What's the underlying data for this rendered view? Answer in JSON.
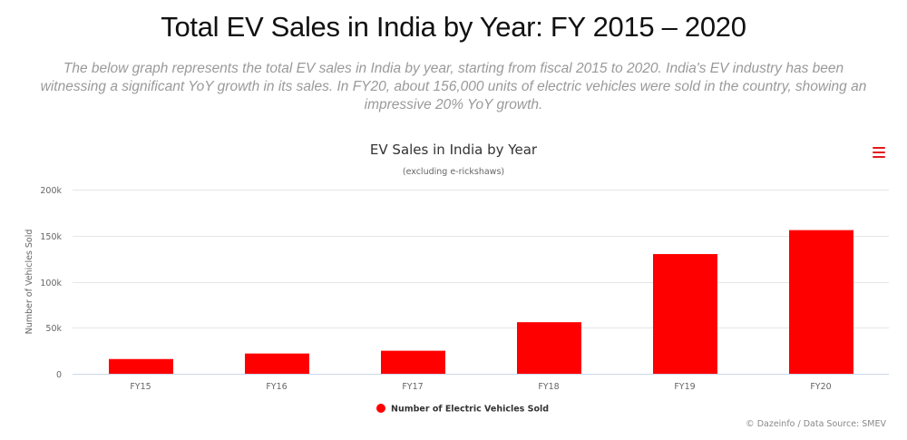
{
  "header": {
    "title": "Total EV Sales in India by Year: FY 2015 – 2020",
    "subtitle": "The below graph represents the total EV sales in India by year, starting from fiscal 2015 to 2020. India's EV industry has been witnessing a significant YoY growth in its sales. In FY20, about 156,000 units of electric vehicles were sold in the country, showing an impressive 20% YoY growth."
  },
  "chart_menu": {
    "icon": "hamburger-menu-icon"
  },
  "credits": "© Dazeinfo / Data Source: SMEV",
  "colors": {
    "bar": "#ff0000",
    "menu": "#e41a1c",
    "grid": "#e6e6e6"
  },
  "chart_data": {
    "type": "bar",
    "title": "EV Sales in India by Year",
    "subtitle": "(excluding e-rickshaws)",
    "ylabel": "Number of Vehicles Sold",
    "xlabel": "",
    "categories": [
      "FY15",
      "FY16",
      "FY17",
      "FY18",
      "FY19",
      "FY20"
    ],
    "series": [
      {
        "name": "Number of Electric Vehicles Sold",
        "values": [
          16000,
          22000,
          25000,
          56000,
          130000,
          156000
        ]
      }
    ],
    "ylim": [
      0,
      200000
    ],
    "yticks": [
      0,
      50000,
      100000,
      150000,
      200000
    ],
    "ytick_labels": [
      "0",
      "50k",
      "100k",
      "150k",
      "200k"
    ],
    "grid": true,
    "legend": "bottom-center"
  }
}
